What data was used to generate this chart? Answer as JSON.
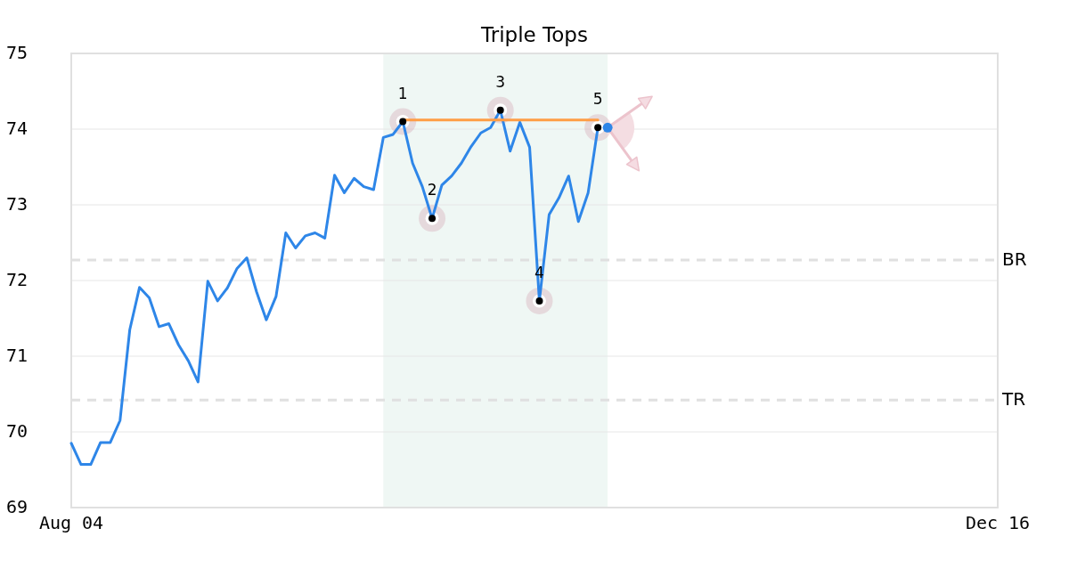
{
  "chart_data": {
    "type": "line",
    "title": "Triple Tops",
    "categories": [
      "Aug 04",
      null,
      null,
      null,
      null,
      null,
      null,
      null,
      null,
      null,
      null,
      null,
      null,
      null,
      null,
      null,
      null,
      null,
      null,
      null,
      null,
      null,
      null,
      null,
      null,
      null,
      null,
      null,
      null,
      null,
      null,
      null,
      null,
      null,
      null,
      null,
      null,
      null,
      null,
      null,
      null,
      null,
      null,
      null,
      null,
      null,
      null,
      null,
      null,
      null,
      null,
      null,
      null,
      null,
      null,
      null,
      null,
      null,
      null,
      null,
      null,
      null,
      null,
      null,
      null,
      null,
      null,
      null,
      null,
      null,
      null,
      null,
      null,
      null,
      null,
      null,
      null,
      null,
      null,
      null,
      null,
      null,
      null,
      null,
      null,
      null,
      null,
      null,
      null,
      null,
      null,
      null,
      null,
      null,
      null,
      "Dec 16"
    ],
    "ylim": [
      69,
      75
    ],
    "yticks": [
      69,
      70,
      71,
      72,
      73,
      74,
      75
    ],
    "grid": "y",
    "series": [
      {
        "color": "#2e86e8",
        "values": [
          69.85,
          69.57,
          69.57,
          69.86,
          69.86,
          70.15,
          71.35,
          71.91,
          71.77,
          71.39,
          71.43,
          71.15,
          70.94,
          70.66,
          71.99,
          71.73,
          71.9,
          72.16,
          72.3,
          71.85,
          71.48,
          71.79,
          72.63,
          72.43,
          72.59,
          72.63,
          72.56,
          73.39,
          73.16,
          73.35,
          73.24,
          73.2,
          73.89,
          73.93,
          74.1,
          73.55,
          73.24,
          72.82,
          73.26,
          73.38,
          73.55,
          73.77,
          73.95,
          74.02,
          74.25,
          73.71,
          74.09,
          73.76,
          71.73,
          72.87,
          73.09,
          73.38,
          72.78,
          73.16,
          74.02,
          null,
          null,
          null,
          null,
          null,
          null,
          null,
          null,
          null,
          null,
          null,
          null,
          null,
          null,
          null,
          null,
          null,
          null,
          null,
          null,
          null,
          null,
          null,
          null,
          null,
          null,
          null,
          null,
          null,
          null,
          null,
          null,
          null,
          null,
          null,
          null,
          null,
          null,
          null,
          null,
          null
        ]
      },
      {
        "color": "#ff9d45",
        "values": [
          null,
          null,
          null,
          null,
          null,
          null,
          null,
          null,
          null,
          null,
          null,
          null,
          null,
          null,
          null,
          null,
          null,
          null,
          null,
          null,
          null,
          null,
          null,
          null,
          null,
          null,
          null,
          null,
          null,
          null,
          null,
          null,
          null,
          null,
          74.12,
          74.12,
          74.12,
          74.12,
          74.12,
          74.12,
          74.12,
          74.12,
          74.12,
          74.12,
          74.12,
          74.12,
          74.12,
          74.12,
          74.12,
          74.12,
          74.12,
          74.12,
          74.12,
          74.12,
          74.12,
          null,
          null,
          null,
          null,
          null,
          null,
          null,
          null,
          null,
          null,
          null,
          null,
          null,
          null,
          null,
          null,
          null,
          null,
          null,
          null,
          null,
          null,
          null,
          null,
          null,
          null,
          null,
          null,
          null,
          null,
          null,
          null,
          null,
          null,
          null,
          null,
          null,
          null,
          null,
          null,
          null
        ]
      },
      {
        "type": "scatter",
        "name": "1",
        "color": "#000000",
        "marker": "circle",
        "values": [
          null,
          null,
          null,
          null,
          null,
          null,
          null,
          null,
          null,
          null,
          null,
          null,
          null,
          null,
          null,
          null,
          null,
          null,
          null,
          null,
          null,
          null,
          null,
          null,
          null,
          null,
          null,
          null,
          null,
          null,
          null,
          null,
          null,
          null,
          74.1,
          null,
          null,
          null,
          null,
          null,
          null,
          null,
          null,
          null,
          null,
          null,
          null,
          null,
          null,
          null,
          null,
          null,
          null,
          null,
          null,
          null,
          null,
          null,
          null,
          null,
          null,
          null,
          null,
          null,
          null,
          null,
          null,
          null,
          null,
          null,
          null,
          null,
          null,
          null,
          null,
          null,
          null,
          null,
          null,
          null,
          null,
          null,
          null,
          null,
          null,
          null,
          null,
          null,
          null,
          null,
          null,
          null,
          null,
          null,
          null,
          null
        ]
      },
      {
        "type": "scatter",
        "name": "2",
        "color": "#000000",
        "marker": "circle",
        "values": [
          null,
          null,
          null,
          null,
          null,
          null,
          null,
          null,
          null,
          null,
          null,
          null,
          null,
          null,
          null,
          null,
          null,
          null,
          null,
          null,
          null,
          null,
          null,
          null,
          null,
          null,
          null,
          null,
          null,
          null,
          null,
          null,
          null,
          null,
          null,
          null,
          null,
          72.82,
          null,
          null,
          null,
          null,
          null,
          null,
          null,
          null,
          null,
          null,
          null,
          null,
          null,
          null,
          null,
          null,
          null,
          null,
          null,
          null,
          null,
          null,
          null,
          null,
          null,
          null,
          null,
          null,
          null,
          null,
          null,
          null,
          null,
          null,
          null,
          null,
          null,
          null,
          null,
          null,
          null,
          null,
          null,
          null,
          null,
          null,
          null,
          null,
          null,
          null,
          null,
          null,
          null,
          null,
          null,
          null,
          null,
          null
        ]
      },
      {
        "type": "scatter",
        "name": "3",
        "color": "#000000",
        "marker": "circle",
        "values": [
          null,
          null,
          null,
          null,
          null,
          null,
          null,
          null,
          null,
          null,
          null,
          null,
          null,
          null,
          null,
          null,
          null,
          null,
          null,
          null,
          null,
          null,
          null,
          null,
          null,
          null,
          null,
          null,
          null,
          null,
          null,
          null,
          null,
          null,
          null,
          null,
          null,
          null,
          null,
          null,
          null,
          null,
          null,
          null,
          74.25,
          null,
          null,
          null,
          null,
          null,
          null,
          null,
          null,
          null,
          null,
          null,
          null,
          null,
          null,
          null,
          null,
          null,
          null,
          null,
          null,
          null,
          null,
          null,
          null,
          null,
          null,
          null,
          null,
          null,
          null,
          null,
          null,
          null,
          null,
          null,
          null,
          null,
          null,
          null,
          null,
          null,
          null,
          null,
          null,
          null,
          null,
          null,
          null,
          null,
          null,
          null
        ]
      },
      {
        "type": "scatter",
        "name": "4",
        "color": "#000000",
        "marker": "circle",
        "values": [
          null,
          null,
          null,
          null,
          null,
          null,
          null,
          null,
          null,
          null,
          null,
          null,
          null,
          null,
          null,
          null,
          null,
          null,
          null,
          null,
          null,
          null,
          null,
          null,
          null,
          null,
          null,
          null,
          null,
          null,
          null,
          null,
          null,
          null,
          null,
          null,
          null,
          null,
          null,
          null,
          null,
          null,
          null,
          null,
          null,
          null,
          null,
          null,
          71.73,
          null,
          null,
          null,
          null,
          null,
          null,
          null,
          null,
          null,
          null,
          null,
          null,
          null,
          null,
          null,
          null,
          null,
          null,
          null,
          null,
          null,
          null,
          null,
          null,
          null,
          null,
          null,
          null,
          null,
          null,
          null,
          null,
          null,
          null,
          null,
          null,
          null,
          null,
          null,
          null,
          null,
          null,
          null,
          null,
          null,
          null,
          null
        ]
      },
      {
        "type": "scatter",
        "name": "5",
        "color": "#000000",
        "marker": "circle",
        "values": [
          null,
          null,
          null,
          null,
          null,
          null,
          null,
          null,
          null,
          null,
          null,
          null,
          null,
          null,
          null,
          null,
          null,
          null,
          null,
          null,
          null,
          null,
          null,
          null,
          null,
          null,
          null,
          null,
          null,
          null,
          null,
          null,
          null,
          null,
          null,
          null,
          null,
          null,
          null,
          null,
          null,
          null,
          null,
          null,
          null,
          null,
          null,
          null,
          null,
          null,
          null,
          null,
          null,
          null,
          74.02,
          null,
          null,
          null,
          null,
          null,
          null,
          null,
          null,
          null,
          null,
          null,
          null,
          null,
          null,
          null,
          null,
          null,
          null,
          null,
          null,
          null,
          null,
          null,
          null,
          null,
          null,
          null,
          null,
          null,
          null,
          null,
          null,
          null,
          null,
          null,
          null,
          null,
          null,
          null,
          null,
          null
        ]
      },
      {
        "type": "scatter",
        "color": "#2e86e8",
        "marker": "circle",
        "values": [
          null,
          null,
          null,
          null,
          null,
          null,
          null,
          null,
          null,
          null,
          null,
          null,
          null,
          null,
          null,
          null,
          null,
          null,
          null,
          null,
          null,
          null,
          null,
          null,
          null,
          null,
          null,
          null,
          null,
          null,
          null,
          null,
          null,
          null,
          null,
          null,
          null,
          null,
          null,
          null,
          null,
          null,
          null,
          null,
          null,
          null,
          null,
          null,
          null,
          null,
          null,
          null,
          null,
          null,
          null,
          74.02,
          null,
          null,
          null,
          null,
          null,
          null,
          null,
          null,
          null,
          null,
          null,
          null,
          null,
          null,
          null,
          null,
          null,
          null,
          null,
          null,
          null,
          null,
          null,
          null,
          null,
          null,
          null,
          null,
          null,
          null,
          null,
          null,
          null,
          null,
          null,
          null,
          null,
          null,
          null,
          null
        ]
      }
    ],
    "ref_lines": [
      {
        "axis": "y",
        "value": 72.27,
        "label": "BR",
        "color": "#e0e0e0",
        "line_style": "dashed"
      },
      {
        "axis": "y",
        "value": 70.42,
        "label": "TR",
        "color": "#e0e0e0",
        "line_style": "dashed"
      }
    ]
  }
}
